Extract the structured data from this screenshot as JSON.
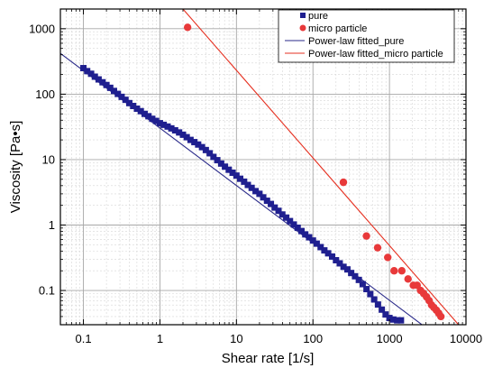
{
  "chart_data": {
    "type": "scatter",
    "xscale": "log",
    "yscale": "log",
    "xlim": [
      0.05,
      10000
    ],
    "ylim": [
      0.03,
      2000
    ],
    "grid": true,
    "legend_position": "top-right",
    "xlabel": "Shear rate [1/s]",
    "ylabel": "Viscosity [Pa•s]",
    "x_ticks": [
      {
        "value": 0.1,
        "label": "0.1"
      },
      {
        "value": 1,
        "label": "1"
      },
      {
        "value": 10,
        "label": "10"
      },
      {
        "value": 100,
        "label": "100"
      },
      {
        "value": 1000,
        "label": "1000"
      },
      {
        "value": 10000,
        "label": "10000"
      }
    ],
    "y_ticks": [
      {
        "value": 0.1,
        "label": "0.1"
      },
      {
        "value": 1,
        "label": "1"
      },
      {
        "value": 10,
        "label": "10"
      },
      {
        "value": 100,
        "label": "100"
      },
      {
        "value": 1000,
        "label": "1000"
      }
    ],
    "series": [
      {
        "name": "pure",
        "kind": "scatter",
        "marker": "square",
        "color": "#1f1f8f",
        "points": [
          [
            0.1,
            250
          ],
          [
            0.112,
            225
          ],
          [
            0.126,
            205
          ],
          [
            0.141,
            185
          ],
          [
            0.158,
            168
          ],
          [
            0.178,
            152
          ],
          [
            0.2,
            138
          ],
          [
            0.224,
            125
          ],
          [
            0.251,
            112
          ],
          [
            0.282,
            101
          ],
          [
            0.316,
            91
          ],
          [
            0.355,
            82
          ],
          [
            0.398,
            73
          ],
          [
            0.447,
            66
          ],
          [
            0.501,
            60
          ],
          [
            0.562,
            55
          ],
          [
            0.631,
            50
          ],
          [
            0.708,
            46
          ],
          [
            0.794,
            42
          ],
          [
            0.891,
            39
          ],
          [
            1.0,
            36
          ],
          [
            1.12,
            34
          ],
          [
            1.26,
            32
          ],
          [
            1.41,
            30
          ],
          [
            1.58,
            28
          ],
          [
            1.78,
            26
          ],
          [
            2.0,
            24
          ],
          [
            2.24,
            22
          ],
          [
            2.51,
            20
          ],
          [
            2.82,
            18.5
          ],
          [
            3.16,
            17
          ],
          [
            3.55,
            15.5
          ],
          [
            3.98,
            14
          ],
          [
            4.47,
            12.5
          ],
          [
            5.01,
            11
          ],
          [
            5.62,
            9.8
          ],
          [
            6.31,
            8.7
          ],
          [
            7.08,
            7.8
          ],
          [
            7.94,
            7.0
          ],
          [
            8.91,
            6.3
          ],
          [
            10.0,
            5.7
          ],
          [
            11.2,
            5.1
          ],
          [
            12.6,
            4.6
          ],
          [
            14.1,
            4.1
          ],
          [
            15.8,
            3.7
          ],
          [
            17.8,
            3.3
          ],
          [
            20.0,
            3.0
          ],
          [
            22.4,
            2.65
          ],
          [
            25.1,
            2.35
          ],
          [
            28.2,
            2.1
          ],
          [
            31.6,
            1.85
          ],
          [
            35.5,
            1.65
          ],
          [
            39.8,
            1.45
          ],
          [
            44.7,
            1.3
          ],
          [
            50.1,
            1.15
          ],
          [
            56.2,
            1.02
          ],
          [
            63.1,
            0.91
          ],
          [
            70.8,
            0.81
          ],
          [
            79.4,
            0.72
          ],
          [
            89.1,
            0.65
          ],
          [
            100,
            0.58
          ],
          [
            112,
            0.52
          ],
          [
            126,
            0.46
          ],
          [
            141,
            0.41
          ],
          [
            158,
            0.37
          ],
          [
            178,
            0.33
          ],
          [
            200,
            0.29
          ],
          [
            224,
            0.26
          ],
          [
            251,
            0.23
          ],
          [
            282,
            0.21
          ],
          [
            316,
            0.185
          ],
          [
            355,
            0.165
          ],
          [
            398,
            0.145
          ],
          [
            447,
            0.125
          ],
          [
            501,
            0.105
          ],
          [
            562,
            0.088
          ],
          [
            631,
            0.073
          ],
          [
            708,
            0.061
          ],
          [
            794,
            0.051
          ],
          [
            891,
            0.043
          ],
          [
            1000,
            0.038
          ],
          [
            1122,
            0.036
          ],
          [
            1259,
            0.035
          ],
          [
            1413,
            0.035
          ]
        ]
      },
      {
        "name": "micro particle",
        "kind": "scatter",
        "marker": "circle",
        "color": "#e8393a",
        "points": [
          [
            2.3,
            1050
          ],
          [
            250,
            4.5
          ],
          [
            500,
            0.68
          ],
          [
            700,
            0.45
          ],
          [
            950,
            0.32
          ],
          [
            1150,
            0.2
          ],
          [
            1450,
            0.2
          ],
          [
            1750,
            0.15
          ],
          [
            2050,
            0.12
          ],
          [
            2300,
            0.12
          ],
          [
            2550,
            0.1
          ],
          [
            2800,
            0.09
          ],
          [
            3050,
            0.08
          ],
          [
            3300,
            0.07
          ],
          [
            3550,
            0.06
          ],
          [
            3800,
            0.055
          ],
          [
            4100,
            0.05
          ],
          [
            4400,
            0.045
          ],
          [
            4700,
            0.04
          ]
        ]
      },
      {
        "name": "Power-law fitted_pure",
        "kind": "line",
        "color": "#2a2a8a",
        "points": [
          [
            0.05,
            420
          ],
          [
            3000,
            0.027
          ]
        ]
      },
      {
        "name": "Power-law fitted_micro particle",
        "kind": "line",
        "color": "#e63020",
        "points": [
          [
            2.0,
            2000
          ],
          [
            8000,
            0.03
          ]
        ]
      }
    ]
  }
}
